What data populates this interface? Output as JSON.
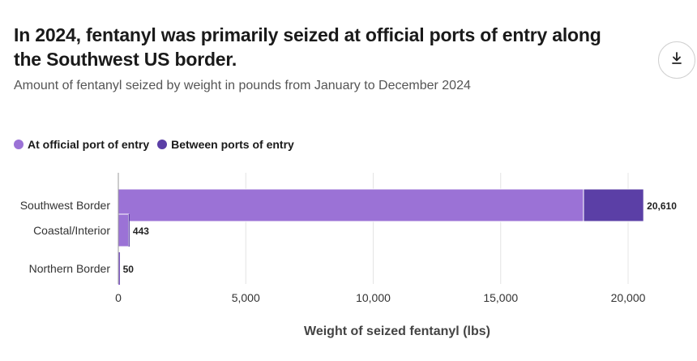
{
  "header": {
    "title": "In 2024, fentanyl was primarily seized at official ports of entry along the Southwest US border.",
    "subtitle": "Amount of fentanyl seized by weight in pounds from January to December 2024"
  },
  "toolbar": {
    "download_icon": "download-icon"
  },
  "legend": {
    "items": [
      {
        "label": "At official port of entry",
        "color": "#9b72d6"
      },
      {
        "label": "Between ports of entry",
        "color": "#5b3fa6"
      }
    ]
  },
  "chart_data": {
    "type": "bar",
    "orientation": "horizontal",
    "stacked": true,
    "categories": [
      "Southwest Border",
      "Coastal/Interior",
      "Northern Border"
    ],
    "series": [
      {
        "name": "At official port of entry",
        "values": [
          18250,
          400,
          48
        ],
        "color": "#9b72d6"
      },
      {
        "name": "Between ports of entry",
        "values": [
          2360,
          43,
          2
        ],
        "color": "#5b3fa6"
      }
    ],
    "totals": [
      20610,
      443,
      50
    ],
    "total_labels": [
      "20,610",
      "443",
      "50"
    ],
    "xlabel": "Weight of seized fentanyl (lbs)",
    "ylabel": "",
    "xlim": [
      0,
      22000
    ],
    "xticks": [
      0,
      5000,
      10000,
      15000,
      20000
    ],
    "xtick_labels": [
      "0",
      "5,000",
      "10,000",
      "15,000",
      "20,000"
    ],
    "grid": true,
    "legend_position": "top-left"
  }
}
